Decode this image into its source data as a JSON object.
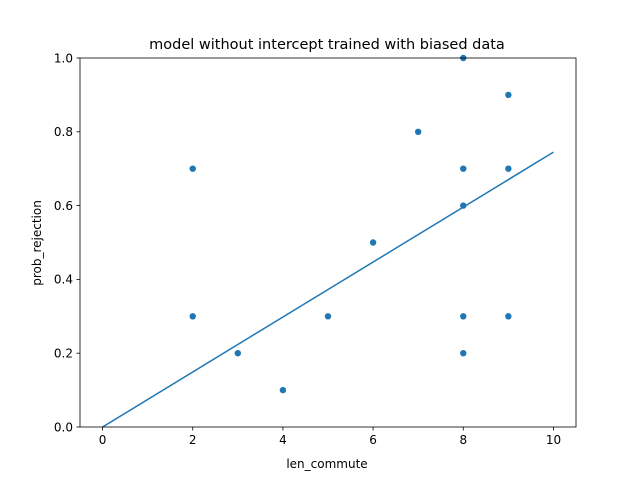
{
  "chart_data": {
    "type": "scatter",
    "title": "model without intercept trained with biased data",
    "xlabel": "len_commute",
    "ylabel": "prob_rejection",
    "xlim": [
      -0.5,
      10.5
    ],
    "ylim": [
      0,
      1.0
    ],
    "xticks": [
      0,
      2,
      4,
      6,
      8,
      10
    ],
    "yticks": [
      0.0,
      0.2,
      0.4,
      0.6,
      0.8,
      1.0
    ],
    "xtick_labels": [
      "0",
      "2",
      "4",
      "6",
      "8",
      "10"
    ],
    "ytick_labels": [
      "0.0",
      "0.2",
      "0.4",
      "0.6",
      "0.8",
      "1.0"
    ],
    "grid": false,
    "color": "#1f77b4",
    "series": [
      {
        "type": "scatter",
        "points": [
          {
            "x": 2,
            "y": 0.7
          },
          {
            "x": 2,
            "y": 0.3
          },
          {
            "x": 3,
            "y": 0.2
          },
          {
            "x": 4,
            "y": 0.1
          },
          {
            "x": 5,
            "y": 0.3
          },
          {
            "x": 6,
            "y": 0.5
          },
          {
            "x": 7,
            "y": 0.8
          },
          {
            "x": 8,
            "y": 1.0
          },
          {
            "x": 8,
            "y": 0.7
          },
          {
            "x": 8,
            "y": 0.6
          },
          {
            "x": 8,
            "y": 0.3
          },
          {
            "x": 8,
            "y": 0.2
          },
          {
            "x": 9,
            "y": 0.9
          },
          {
            "x": 9,
            "y": 0.7
          },
          {
            "x": 9,
            "y": 0.3
          }
        ]
      },
      {
        "type": "line",
        "points": [
          {
            "x": 0,
            "y": 0.0
          },
          {
            "x": 10,
            "y": 0.745
          }
        ]
      }
    ]
  }
}
